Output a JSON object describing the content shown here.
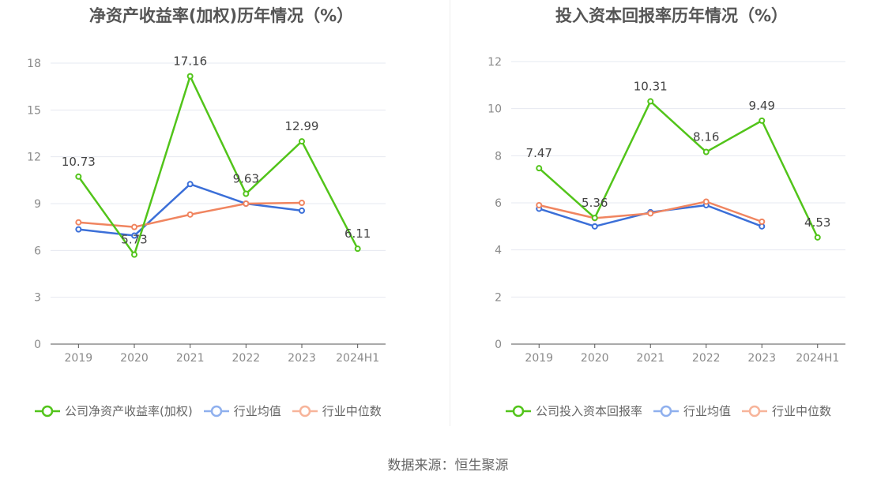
{
  "source_text": "数据来源：恒生聚源",
  "colors": {
    "company": "#52c41a",
    "avg": "#3b6fd8",
    "median": "#f08560",
    "grid": "#e6e8f0",
    "axis": "#555555"
  },
  "chart_data": [
    {
      "type": "line",
      "title": "净资产收益率(加权)历年情况（%）",
      "categories": [
        "2019",
        "2020",
        "2021",
        "2022",
        "2023",
        "2024H1"
      ],
      "ylim": [
        0,
        18
      ],
      "yticks": [
        0,
        3,
        6,
        9,
        12,
        15,
        18
      ],
      "grid": true,
      "legend_position": "bottom",
      "series": [
        {
          "name": "公司净资产收益率(加权)",
          "color": "#52c41a",
          "values": [
            10.73,
            5.73,
            17.16,
            9.63,
            12.99,
            6.11
          ],
          "labels": [
            "10.73",
            "5.73",
            "17.16",
            "9.63",
            "12.99",
            "6.11"
          ]
        },
        {
          "name": "行业均值",
          "color": "#3b6fd8",
          "values": [
            7.35,
            6.95,
            10.25,
            9.0,
            8.55,
            null
          ]
        },
        {
          "name": "行业中位数",
          "color": "#f08560",
          "values": [
            7.8,
            7.5,
            8.3,
            9.0,
            9.05,
            null
          ]
        }
      ]
    },
    {
      "type": "line",
      "title": "投入资本回报率历年情况（%）",
      "categories": [
        "2019",
        "2020",
        "2021",
        "2022",
        "2023",
        "2024H1"
      ],
      "ylim": [
        0,
        12
      ],
      "yticks": [
        0,
        2,
        4,
        6,
        8,
        10,
        12
      ],
      "grid": true,
      "legend_position": "bottom",
      "series": [
        {
          "name": "公司投入资本回报率",
          "color": "#52c41a",
          "values": [
            7.47,
            5.36,
            10.31,
            8.16,
            9.49,
            4.53
          ],
          "labels": [
            "7.47",
            "5.36",
            "10.31",
            "8.16",
            "9.49",
            "4.53"
          ]
        },
        {
          "name": "行业均值",
          "color": "#3b6fd8",
          "values": [
            5.75,
            5.0,
            5.6,
            5.9,
            5.0,
            null
          ]
        },
        {
          "name": "行业中位数",
          "color": "#f08560",
          "values": [
            5.9,
            5.35,
            5.55,
            6.05,
            5.2,
            null
          ]
        }
      ]
    }
  ]
}
